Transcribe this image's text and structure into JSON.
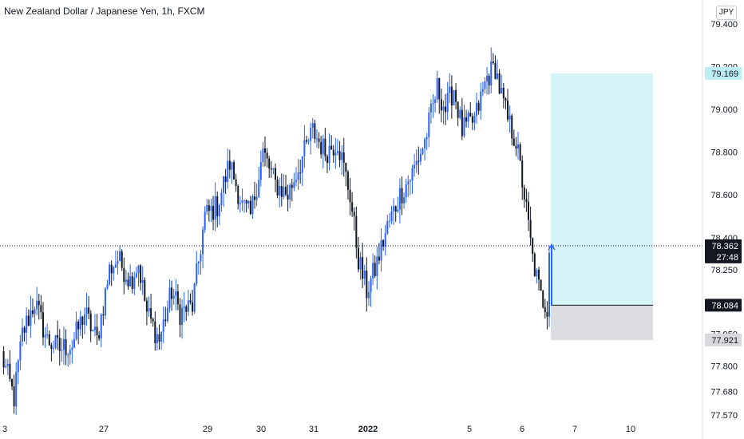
{
  "header": {
    "title": "New Zealand Dollar / Japanese Yen, 1h, FXCM",
    "currency": "JPY"
  },
  "colors": {
    "up": "#2962ff",
    "down": "#131722",
    "profit_zone": "#bdeef3",
    "loss_zone": "#d7d9dd",
    "price_line": "#131722",
    "target_label_bg": "#bdeef3",
    "stop_label_bg": "#d7d9dd"
  },
  "chart_data": {
    "type": "candlestick",
    "symbol": "NZDJPY",
    "timeframe": "1h",
    "y_axis": {
      "ticks": [
        "79.400",
        "79.200",
        "79.000",
        "78.800",
        "78.600",
        "78.400",
        "78.250",
        "78.100",
        "77.950",
        "77.800",
        "77.680",
        "77.570"
      ],
      "ylim": [
        77.55,
        79.45
      ]
    },
    "x_axis": {
      "ticks": [
        "3",
        "27",
        "29",
        "30",
        "31",
        "2022",
        "5",
        "6",
        "7",
        "10"
      ]
    },
    "price_labels": {
      "target": "79.169",
      "current": "78.362",
      "countdown": "27:48",
      "entry": "78.084",
      "stop": "77.921"
    },
    "position": {
      "type": "long",
      "entry": 78.084,
      "target": 79.169,
      "stop": 77.921
    },
    "anchors": [
      [
        0,
        77.85
      ],
      [
        6,
        77.65
      ],
      [
        10,
        77.95
      ],
      [
        16,
        78.1
      ],
      [
        22,
        77.92
      ],
      [
        28,
        77.88
      ],
      [
        34,
        77.9
      ],
      [
        40,
        78.05
      ],
      [
        46,
        77.92
      ],
      [
        52,
        78.25
      ],
      [
        56,
        78.3
      ],
      [
        62,
        78.2
      ],
      [
        66,
        78.28
      ],
      [
        70,
        78.05
      ],
      [
        76,
        77.92
      ],
      [
        82,
        78.15
      ],
      [
        86,
        78.05
      ],
      [
        92,
        78.08
      ],
      [
        98,
        78.5
      ],
      [
        104,
        78.55
      ],
      [
        110,
        78.75
      ],
      [
        116,
        78.55
      ],
      [
        120,
        78.5
      ],
      [
        126,
        78.8
      ],
      [
        132,
        78.65
      ],
      [
        138,
        78.6
      ],
      [
        144,
        78.75
      ],
      [
        150,
        78.9
      ],
      [
        156,
        78.8
      ],
      [
        162,
        78.85
      ],
      [
        168,
        78.6
      ],
      [
        172,
        78.3
      ],
      [
        176,
        78.15
      ],
      [
        180,
        78.25
      ],
      [
        186,
        78.45
      ],
      [
        192,
        78.6
      ],
      [
        198,
        78.7
      ],
      [
        204,
        78.85
      ],
      [
        210,
        79.1
      ],
      [
        214,
        79.0
      ],
      [
        218,
        79.1
      ],
      [
        222,
        78.9
      ],
      [
        228,
        78.95
      ],
      [
        234,
        79.15
      ],
      [
        238,
        79.2
      ],
      [
        240,
        79.1
      ],
      [
        244,
        78.95
      ],
      [
        248,
        78.85
      ],
      [
        252,
        78.6
      ],
      [
        256,
        78.3
      ],
      [
        260,
        78.12
      ],
      [
        263,
        78.08
      ],
      [
        264,
        78.36
      ]
    ]
  }
}
